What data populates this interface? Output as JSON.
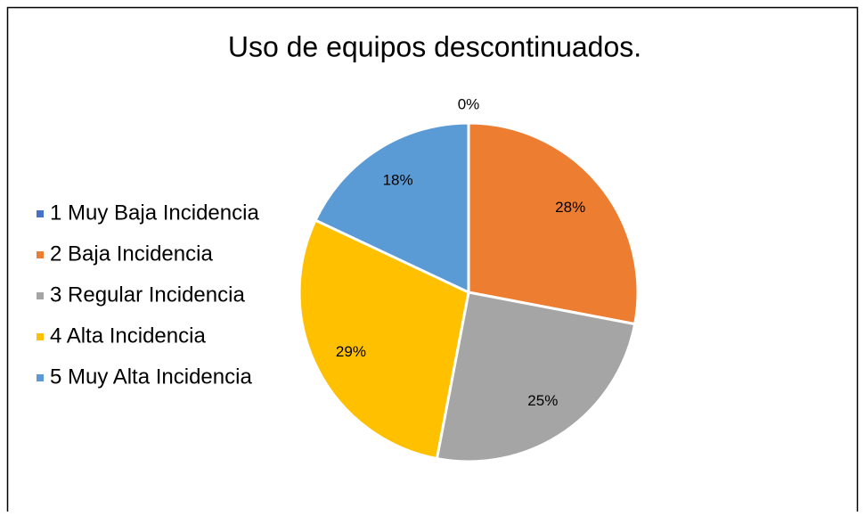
{
  "chart_data": {
    "type": "pie",
    "title": "Uso de equipos descontinuados.",
    "categories": [
      "1 Muy Baja Incidencia",
      "2 Baja Incidencia",
      "3 Regular Incidencia",
      "4 Alta Incidencia",
      "5 Muy Alta Incidencia"
    ],
    "values": [
      0,
      28,
      25,
      29,
      18
    ],
    "value_labels": [
      "0%",
      "28%",
      "25%",
      "29%",
      "18%"
    ],
    "colors": [
      "#4472c4",
      "#ed7d31",
      "#a5a5a5",
      "#ffc000",
      "#5b9bd5"
    ],
    "legend": "left"
  }
}
